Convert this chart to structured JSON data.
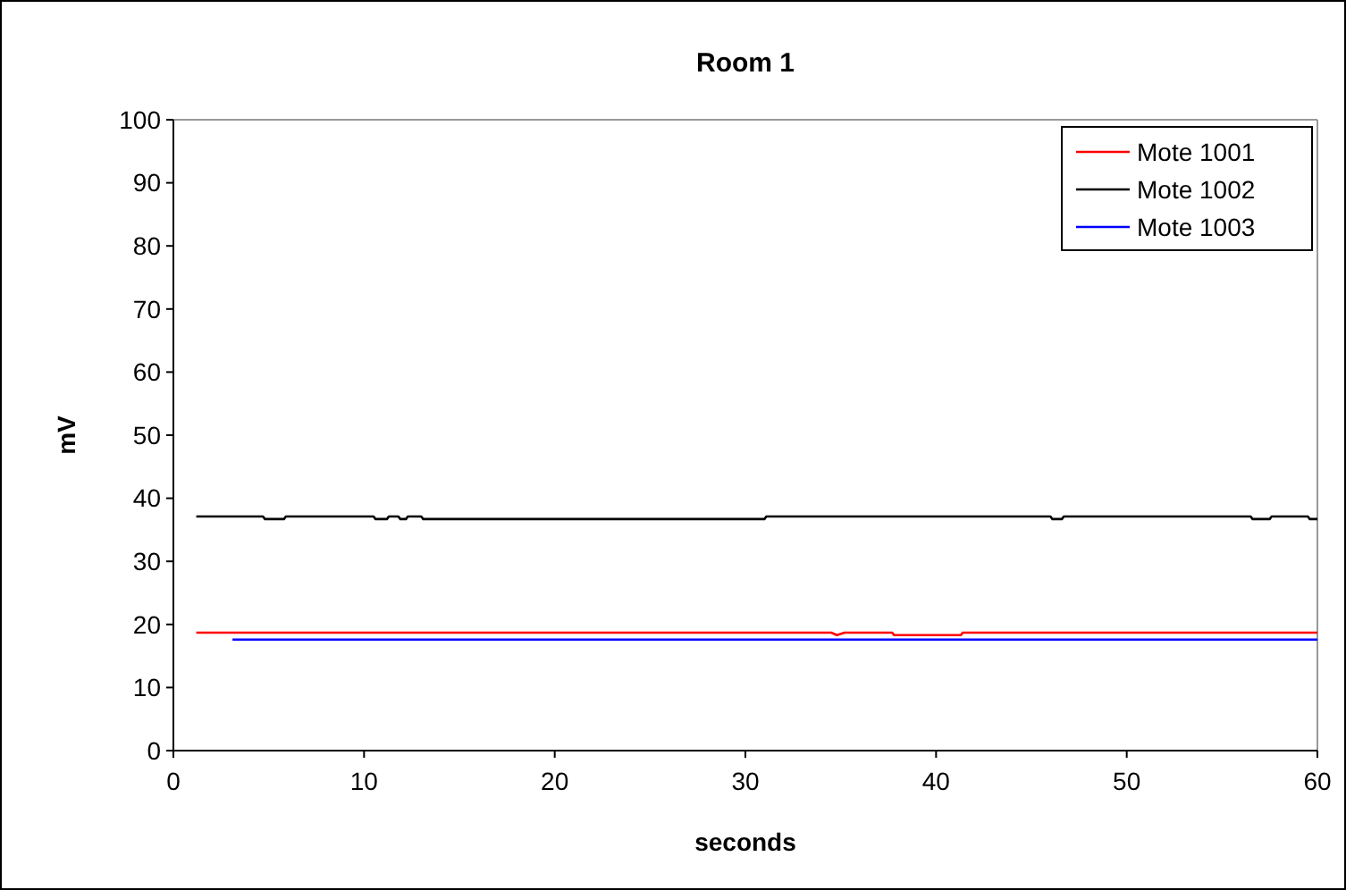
{
  "chart_data": {
    "type": "line",
    "title": "Room 1",
    "xlabel": "seconds",
    "ylabel": "mV",
    "xlim": [
      0,
      60
    ],
    "xticks": [
      0,
      10,
      20,
      30,
      40,
      50,
      60
    ],
    "ylim": [
      0,
      100
    ],
    "yticks": [
      0,
      10,
      20,
      30,
      40,
      50,
      60,
      70,
      80,
      90,
      100
    ],
    "grid": false,
    "legend": "top right",
    "marker": "none",
    "line_style": "solid",
    "series": [
      {
        "name": "Mote 1001",
        "color": "#ff0000",
        "x": [
          1.2,
          34.5,
          34.8,
          35.2,
          37.7,
          37.8,
          41.3,
          41.4,
          60
        ],
        "values": [
          18.7,
          18.7,
          18.3,
          18.7,
          18.7,
          18.3,
          18.3,
          18.7,
          18.7
        ]
      },
      {
        "name": "Mote 1002",
        "color": "#000000",
        "x": [
          1.2,
          4.7,
          4.8,
          5.8,
          5.9,
          10.5,
          10.6,
          11.2,
          11.3,
          11.8,
          11.9,
          12.2,
          12.3,
          13.0,
          13.1,
          31.0,
          31.1,
          46.0,
          46.1,
          46.6,
          46.7,
          56.5,
          56.6,
          57.5,
          57.6,
          59.5,
          59.6,
          60
        ],
        "values": [
          37.1,
          37.1,
          36.7,
          36.7,
          37.1,
          37.1,
          36.7,
          36.7,
          37.1,
          37.1,
          36.7,
          36.7,
          37.1,
          37.1,
          36.7,
          36.7,
          37.1,
          37.1,
          36.7,
          36.7,
          37.1,
          37.1,
          36.7,
          36.7,
          37.1,
          37.1,
          36.7,
          36.7
        ]
      },
      {
        "name": "Mote 1003",
        "color": "#0000ff",
        "x": [
          3.1,
          60
        ],
        "values": [
          17.6,
          17.6
        ]
      }
    ]
  }
}
